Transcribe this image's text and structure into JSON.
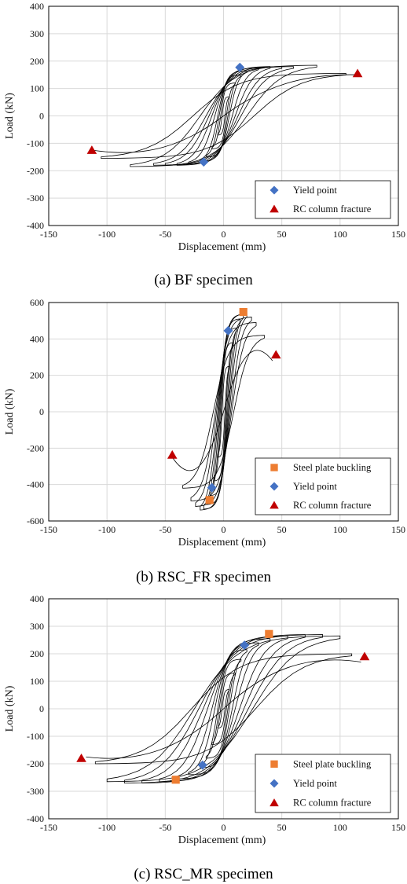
{
  "colors": {
    "grid": "#d9d9d9",
    "curve": "#000000",
    "steel_plate_buckling": "#ed7d31",
    "yield_point": "#4472c4",
    "rc_column_fracture": "#c00000"
  },
  "chart_data": [
    {
      "type": "line",
      "caption": "(a) BF specimen",
      "xlabel": "Displacement (mm)",
      "ylabel": "Load (kN)",
      "xlim": [
        -150,
        150
      ],
      "ylim": [
        -400,
        400
      ],
      "xticks": [
        -150,
        -100,
        -50,
        0,
        50,
        100,
        150
      ],
      "yticks": [
        -400,
        -300,
        -200,
        -100,
        0,
        100,
        200,
        300,
        400
      ],
      "grid": true,
      "legend_position": "bottom-right",
      "hysteresis": {
        "cycles": [
          {
            "d": 5,
            "f": 70
          },
          {
            "d": 10,
            "f": 120
          },
          {
            "d": 15,
            "f": 150
          },
          {
            "d": 20,
            "f": 165
          },
          {
            "d": 30,
            "f": 175
          },
          {
            "d": 40,
            "f": 180
          },
          {
            "d": 50,
            "f": 180
          },
          {
            "d": 60,
            "f": 180
          },
          {
            "d": 80,
            "f": 185
          },
          {
            "d": 105,
            "f": 155
          }
        ],
        "final_positive": {
          "d": 115,
          "f": 150
        },
        "final_negative": {
          "d": -112,
          "f": -125
        }
      },
      "series": [
        {
          "name": "Yield point",
          "marker": "diamond",
          "color": "#4472c4",
          "points": [
            {
              "x": 14,
              "y": 177
            },
            {
              "x": -17,
              "y": -168
            }
          ]
        },
        {
          "name": "RC column fracture",
          "marker": "triangle",
          "color": "#c00000",
          "points": [
            {
              "x": 115,
              "y": 155
            },
            {
              "x": -113,
              "y": -125
            }
          ]
        }
      ]
    },
    {
      "type": "line",
      "caption": "(b) RSC_FR specimen",
      "xlabel": "Displacement (mm)",
      "ylabel": "Load (kN)",
      "xlim": [
        -150,
        150
      ],
      "ylim": [
        -600,
        600
      ],
      "xticks": [
        -150,
        -100,
        -50,
        0,
        50,
        100,
        150
      ],
      "yticks": [
        -600,
        -400,
        -200,
        0,
        200,
        400,
        600
      ],
      "grid": true,
      "legend_position": "bottom-right",
      "hysteresis": {
        "cycles": [
          {
            "d": 5,
            "f": 250
          },
          {
            "d": 8,
            "f": 380
          },
          {
            "d": 11,
            "f": 460
          },
          {
            "d": 14,
            "f": 510
          },
          {
            "d": 17,
            "f": 535
          },
          {
            "d": 20,
            "f": 540
          },
          {
            "d": 24,
            "f": 520
          },
          {
            "d": 28,
            "f": 490
          },
          {
            "d": 35,
            "f": 420
          }
        ],
        "final_positive": {
          "d": 42,
          "f": 280
        },
        "final_negative": {
          "d": -45,
          "f": -240
        }
      },
      "series": [
        {
          "name": "Steel plate buckling",
          "marker": "square",
          "color": "#ed7d31",
          "points": [
            {
              "x": 17,
              "y": 548
            },
            {
              "x": -12,
              "y": -485
            }
          ]
        },
        {
          "name": "Yield point",
          "marker": "diamond",
          "color": "#4472c4",
          "points": [
            {
              "x": 4,
              "y": 445
            },
            {
              "x": -10,
              "y": -417
            }
          ]
        },
        {
          "name": "RC column fracture",
          "marker": "triangle",
          "color": "#c00000",
          "points": [
            {
              "x": 45,
              "y": 313
            },
            {
              "x": -44,
              "y": -237
            }
          ]
        }
      ]
    },
    {
      "type": "line",
      "caption": "(c) RSC_MR specimen",
      "xlabel": "Displacement (mm)",
      "ylabel": "Load (kN)",
      "xlim": [
        -150,
        150
      ],
      "ylim": [
        -400,
        400
      ],
      "xticks": [
        -150,
        -100,
        -50,
        0,
        50,
        100,
        150
      ],
      "yticks": [
        -400,
        -300,
        -200,
        -100,
        0,
        100,
        200,
        300,
        400
      ],
      "grid": true,
      "legend_position": "bottom-right",
      "hysteresis": {
        "cycles": [
          {
            "d": 5,
            "f": 70
          },
          {
            "d": 10,
            "f": 130
          },
          {
            "d": 15,
            "f": 180
          },
          {
            "d": 20,
            "f": 215
          },
          {
            "d": 30,
            "f": 240
          },
          {
            "d": 40,
            "f": 255
          },
          {
            "d": 55,
            "f": 265
          },
          {
            "d": 70,
            "f": 270
          },
          {
            "d": 85,
            "f": 270
          },
          {
            "d": 100,
            "f": 265
          },
          {
            "d": 110,
            "f": 200
          }
        ],
        "final_positive": {
          "d": 118,
          "f": 170
        },
        "final_negative": {
          "d": -118,
          "f": -175
        }
      },
      "series": [
        {
          "name": "Steel plate buckling",
          "marker": "square",
          "color": "#ed7d31",
          "points": [
            {
              "x": 39,
              "y": 272
            },
            {
              "x": -41,
              "y": -258
            }
          ]
        },
        {
          "name": "Yield point",
          "marker": "diamond",
          "color": "#4472c4",
          "points": [
            {
              "x": 18,
              "y": 231
            },
            {
              "x": -18,
              "y": -205
            }
          ]
        },
        {
          "name": "RC column fracture",
          "marker": "triangle",
          "color": "#c00000",
          "points": [
            {
              "x": 121,
              "y": 190
            },
            {
              "x": -122,
              "y": -180
            }
          ]
        }
      ]
    }
  ]
}
